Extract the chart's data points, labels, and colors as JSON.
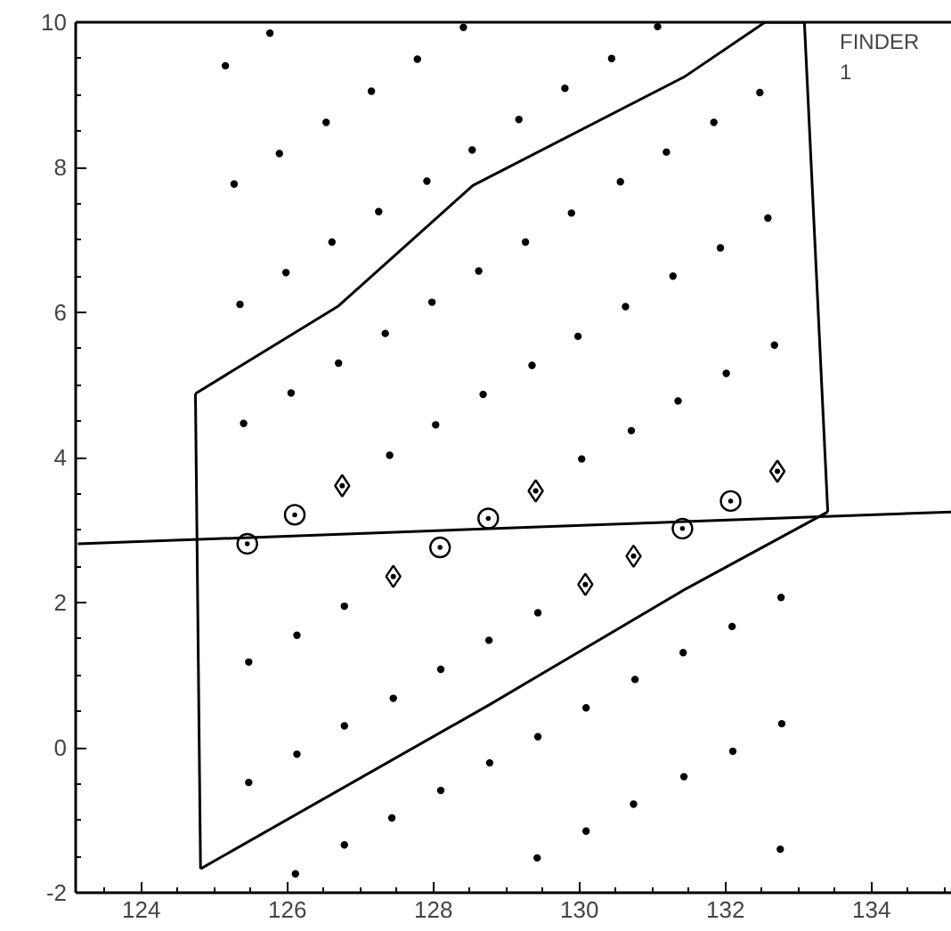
{
  "chart_data": {
    "type": "scatter",
    "xlim": [
      123.1,
      135.1
    ],
    "ylim": [
      -2,
      10
    ],
    "xticks": [
      124,
      126,
      128,
      130,
      132,
      134
    ],
    "yticks": [
      -2,
      0,
      2,
      4,
      6,
      8,
      10
    ],
    "annotations": [
      "FINDER\n1"
    ],
    "series": [
      {
        "marker": "circle",
        "color": "#000000",
        "x": [
          125.76,
          128.41,
          131.07,
          125.15,
          127.78,
          130.44,
          127.15,
          129.8,
          132.47,
          126.53,
          129.17,
          131.84,
          125.89,
          128.53,
          131.19,
          125.27,
          127.91,
          130.56,
          127.25,
          129.89,
          132.58,
          126.61,
          129.26,
          131.93,
          125.98,
          128.62,
          131.28,
          125.35,
          127.98,
          130.63,
          127.34,
          129.98,
          132.67,
          126.7,
          129.35,
          132.01,
          126.05,
          128.68,
          131.35,
          125.4,
          128.03,
          130.71,
          127.4,
          130.03,
          126.78,
          129.43,
          132.76,
          126.13,
          128.76,
          132.09,
          125.47,
          128.1,
          131.42,
          127.45,
          130.76,
          126.78,
          130.09,
          132.77,
          126.13,
          129.43,
          132.1,
          125.47,
          128.77,
          131.43,
          128.1,
          130.74,
          127.43,
          130.09,
          126.78,
          129.42,
          132.75,
          126.11
        ],
        "values": [
          9.85,
          9.93,
          9.94,
          9.4,
          9.49,
          9.5,
          9.05,
          9.09,
          9.03,
          8.62,
          8.66,
          8.62,
          8.19,
          8.24,
          8.21,
          7.77,
          7.81,
          7.8,
          7.39,
          7.37,
          7.3,
          6.97,
          6.97,
          6.89,
          6.55,
          6.57,
          6.5,
          6.11,
          6.14,
          6.08,
          5.71,
          5.67,
          5.55,
          5.3,
          5.27,
          5.16,
          4.89,
          4.87,
          4.78,
          4.47,
          4.45,
          4.37,
          4.03,
          3.98,
          1.95,
          1.86,
          2.07,
          1.55,
          1.48,
          1.67,
          1.18,
          1.08,
          1.31,
          0.68,
          0.94,
          0.3,
          0.55,
          0.33,
          -0.09,
          0.15,
          -0.05,
          -0.48,
          -0.21,
          -0.4,
          -0.59,
          -0.78,
          -0.97,
          -1.15,
          -1.34,
          -1.52,
          -1.4,
          -1.74
        ]
      },
      {
        "marker": "circle_dot",
        "color": "#000000",
        "x": [
          125.45,
          126.1,
          128.09,
          128.75,
          131.41,
          132.07
        ],
        "values": [
          2.81,
          3.21,
          2.76,
          3.16,
          3.02,
          3.4
        ]
      },
      {
        "marker": "diamond_dot",
        "color": "#000000",
        "x": [
          126.75,
          127.45,
          129.4,
          130.08,
          130.74,
          132.71
        ],
        "values": [
          3.61,
          2.36,
          3.54,
          2.25,
          2.64,
          3.81
        ]
      },
      {
        "type": "line",
        "line_style": "solid",
        "color": "#000000",
        "x": [
          124.74,
          126.7,
          128.54,
          131.44,
          132.54,
          133.08
        ],
        "values": [
          4.88,
          6.09,
          7.75,
          9.25,
          10.0,
          10.0
        ]
      },
      {
        "type": "line",
        "line_style": "solid",
        "color": "#000000",
        "x": [
          133.08,
          133.4
        ],
        "values": [
          10.0,
          3.25
        ]
      },
      {
        "type": "line",
        "line_style": "solid",
        "color": "#000000",
        "x": [
          124.81,
          128.78,
          131.44,
          133.4
        ],
        "values": [
          -1.67,
          0.6,
          2.18,
          3.25
        ]
      },
      {
        "type": "line",
        "line_style": "solid",
        "color": "#000000",
        "x": [
          124.74,
          124.81
        ],
        "values": [
          4.88,
          -1.67
        ]
      },
      {
        "type": "line",
        "line_style": "solid",
        "color": "#000000",
        "x": [
          123.13,
          135.1
        ],
        "values": [
          2.81,
          3.25
        ]
      }
    ]
  }
}
